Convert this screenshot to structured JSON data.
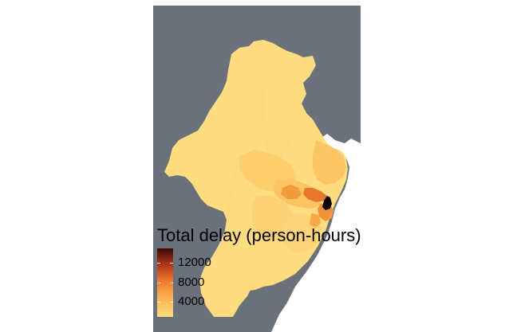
{
  "legend": {
    "title": "Total delay (person-hours)",
    "ticks": [
      "12000",
      "8000",
      "4000"
    ],
    "tick_values": [
      12000,
      8000,
      4000
    ],
    "value_min": 1500,
    "value_max": 14500
  },
  "colors": {
    "background": "#6b717a",
    "water_land_edge": "#ffffff",
    "gradient_low": "#fedd80",
    "gradient_mid_low": "#fbb04f",
    "gradient_mid": "#e8722a",
    "gradient_mid_high": "#a83014",
    "gradient_high": "#3b0a0a",
    "base_region": "#fedc7f",
    "region_medium": "#fcc463",
    "region_orange": "#f39a3b",
    "region_dark_orange": "#e8772d",
    "region_hotspot": "#0b0202"
  }
}
